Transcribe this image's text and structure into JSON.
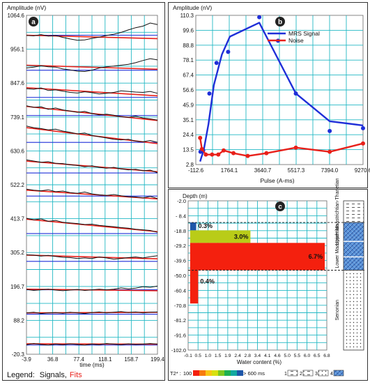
{
  "colors": {
    "grid": "#22b8c4",
    "signal_blue": "#1f2fd8",
    "fit_red": "#e8201a",
    "baseline_blue": "#1f2fd8",
    "trace_black": "#111111",
    "panel_border": "#333333",
    "badge": "#222222"
  },
  "legend_bottom": {
    "label": "Legend:",
    "signals": "Signals",
    "sep": ",",
    "fits": "Fits"
  },
  "chart_data": [
    {
      "id": "a",
      "badge": "a",
      "type": "line",
      "ylabel": "Amplitude (nV)",
      "xlabel": "time (ms)",
      "xticks": [
        "-3.9",
        "36.8",
        "77.4",
        "118.1",
        "158.7",
        "199.4"
      ],
      "xlim": [
        -3.9,
        199.4
      ],
      "yticks": [
        "1064.6",
        "956.1",
        "847.6",
        "739.1",
        "630.6",
        "522.2",
        "413.7",
        "305.2",
        "196.7",
        "88.2",
        "-20.3"
      ],
      "ylim": [
        -20.3,
        1064.6
      ],
      "grid": true,
      "traces": [
        {
          "baseline": 1001,
          "fit": [
            1001,
            990
          ],
          "signal": [
            1000,
            999,
            1003,
            998,
            1000,
            994,
            989,
            985,
            986,
            991,
            995,
            1000,
            1004,
            1010,
            1018,
            1025,
            1030,
            1040,
            1035
          ]
        },
        {
          "baseline": 889,
          "fit": [
            905,
            892
          ],
          "signal": [
            896,
            899,
            903,
            900,
            899,
            893,
            890,
            886,
            885,
            889,
            896,
            900,
            902,
            905,
            908,
            913,
            920,
            926,
            922
          ]
        },
        {
          "baseline": 802,
          "fit": [
            833,
            807
          ],
          "signal": [
            830,
            828,
            832,
            824,
            826,
            822,
            818,
            816,
            820,
            817,
            813,
            815,
            818,
            823,
            821,
            819,
            818,
            821,
            815
          ]
        },
        {
          "baseline": 744,
          "fit": [
            773,
            728
          ],
          "signal": [
            775,
            770,
            772,
            764,
            768,
            762,
            758,
            754,
            757,
            750,
            746,
            748,
            745,
            740,
            738,
            742,
            736,
            733,
            729
          ]
        },
        {
          "baseline": 658,
          "fit": [
            705,
            654
          ],
          "signal": [
            710,
            705,
            702,
            698,
            700,
            694,
            690,
            685,
            688,
            680,
            676,
            672,
            668,
            666,
            668,
            662,
            660,
            664,
            658
          ]
        },
        {
          "baseline": 560,
          "fit": [
            598,
            564
          ],
          "signal": [
            602,
            598,
            594,
            596,
            591,
            590,
            586,
            584,
            580,
            583,
            578,
            575,
            578,
            573,
            570,
            572,
            567,
            569,
            561
          ]
        },
        {
          "baseline": 486,
          "fit": [
            505,
            477
          ],
          "signal": [
            508,
            505,
            503,
            506,
            500,
            502,
            497,
            495,
            499,
            493,
            490,
            488,
            491,
            487,
            484,
            483,
            480,
            485,
            478
          ]
        },
        {
          "baseline": 366,
          "fit": [
            412,
            372
          ],
          "signal": [
            415,
            410,
            413,
            405,
            408,
            402,
            400,
            398,
            395,
            396,
            392,
            390,
            388,
            385,
            383,
            380,
            378,
            376,
            370
          ]
        },
        {
          "baseline": 277,
          "fit": [
            297,
            285
          ],
          "signal": [
            298,
            297,
            294,
            296,
            293,
            290,
            289,
            286,
            288,
            286,
            291,
            288,
            284,
            286,
            289,
            291,
            288,
            292,
            295
          ]
        },
        {
          "baseline": 186,
          "fit": [
            188,
            183
          ],
          "signal": [
            187,
            184,
            186,
            188,
            185,
            183,
            185,
            187,
            184,
            186,
            188,
            186,
            188,
            192,
            189,
            191,
            196,
            194,
            198
          ]
        },
        {
          "baseline": 108,
          "fit": [
            112,
            114
          ],
          "signal": [
            112,
            114,
            110,
            112,
            113,
            111,
            114,
            112,
            110,
            113,
            115,
            112,
            114,
            116,
            113,
            115,
            112,
            114,
            115
          ]
        },
        {
          "baseline": 9,
          "fit": [
            13,
            12
          ],
          "signal": [
            10,
            14,
            11,
            9,
            12,
            10,
            13,
            11,
            9,
            12,
            10,
            14,
            12,
            10,
            13,
            11,
            12,
            14,
            12
          ]
        }
      ]
    },
    {
      "id": "b",
      "badge": "b",
      "type": "line",
      "ylabel": "Amplitude (nV)",
      "xlabel": "Pulse (A-ms)",
      "xticks": [
        "-112.6",
        "1764.1",
        "3640.7",
        "5517.3",
        "7394.0",
        "9270.6"
      ],
      "xlim": [
        -112.6,
        9270.6
      ],
      "yticks": [
        "110.3",
        "99.6",
        "88.8",
        "78.1",
        "67.4",
        "56.6",
        "45.9",
        "35.1",
        "24.4",
        "13.5",
        "2.8"
      ],
      "ylim": [
        2.8,
        110.3
      ],
      "grid": true,
      "legend_position": "top-right",
      "series": [
        {
          "name": "MRS Signal",
          "line": [
            [
              130,
              5
            ],
            [
              200,
              8
            ],
            [
              330,
              13
            ],
            [
              600,
              32
            ],
            [
              900,
              60
            ],
            [
              1350,
              82
            ],
            [
              1800,
              95
            ],
            [
              3450,
              105
            ],
            [
              5500,
              54
            ],
            [
              7400,
              34
            ],
            [
              9270,
              31
            ]
          ],
          "points": [
            [
              150,
              12
            ],
            [
              300,
              13
            ],
            [
              650,
              54
            ],
            [
              1050,
              76
            ],
            [
              1700,
              84
            ],
            [
              3450,
              109
            ],
            [
              4500,
              92
            ],
            [
              5500,
              54
            ],
            [
              7400,
              27
            ],
            [
              9270,
              29
            ]
          ]
        },
        {
          "name": "Noise",
          "line": [
            [
              130,
              22
            ],
            [
              230,
              14
            ],
            [
              450,
              10
            ],
            [
              800,
              10
            ],
            [
              1150,
              10
            ],
            [
              1450,
              13
            ],
            [
              2000,
              11
            ],
            [
              2800,
              9
            ],
            [
              3850,
              11
            ],
            [
              5500,
              15
            ],
            [
              7400,
              12
            ],
            [
              9270,
              18
            ]
          ],
          "points": [
            [
              130,
              22
            ],
            [
              230,
              14
            ],
            [
              450,
              10
            ],
            [
              800,
              10
            ],
            [
              1150,
              10
            ],
            [
              1450,
              13
            ],
            [
              2000,
              11
            ],
            [
              2800,
              9
            ],
            [
              3850,
              11
            ],
            [
              5500,
              15
            ],
            [
              7400,
              12
            ],
            [
              9270,
              18
            ]
          ]
        }
      ]
    },
    {
      "id": "c",
      "badge": "c",
      "type": "bar",
      "orientation": "horizontal",
      "ylabel": "Depth (m)",
      "xlabel": "Water content (%)",
      "xticks": [
        "-0.1",
        "0.5",
        "1.0",
        "1.5",
        "1.9",
        "2.4",
        "2.8",
        "3.4",
        "4.1",
        "4.6",
        "5.0",
        "5.5",
        "6.0",
        "6.5",
        "6.8"
      ],
      "xlim": [
        -0.1,
        6.8
      ],
      "yticks": [
        "-2.0",
        "- 8.4",
        "-18.8",
        "-29.2",
        "-39.6",
        "-50.0",
        "-60.4",
        "-70.8",
        "-81.2",
        "-91.6",
        "-102.0"
      ],
      "ylim": [
        -102.0,
        -2.0
      ],
      "grid": true,
      "dashed_depths": [
        -16.5,
        -48.5
      ],
      "bars": [
        {
          "label": "0.3%",
          "value": 0.3,
          "top": -16.5,
          "bottom": -21.8,
          "color": "#1d56a8"
        },
        {
          "label": "3.0%",
          "value": 3.0,
          "top": -21.8,
          "bottom": -30.2,
          "color": "#b9cc18"
        },
        {
          "label": "6.7%",
          "value": 6.7,
          "top": -30.2,
          "bottom": -48.5,
          "color": "#f4200e"
        },
        {
          "label": "0.4%",
          "value": 0.4,
          "top": -48.5,
          "bottom": -70.8,
          "color": "#f4200e"
        }
      ],
      "t2_legend": {
        "label": "T2* :",
        "min": "100",
        "max": "> 600 ms",
        "colors": [
          "#f4200e",
          "#f77a0e",
          "#f9c614",
          "#d8e010",
          "#7cc820",
          "#1eb050",
          "#12a8a0",
          "#1d56a8"
        ]
      },
      "strata_legend": [
        "1",
        "2",
        "3",
        "4"
      ],
      "strata": [
        {
          "name": "Upper Maastrichtian-Thanetian",
          "top": -2.0,
          "bottom": -16.5,
          "pattern": "dash"
        },
        {
          "name": "Lower Maastrichtian",
          "top": -16.5,
          "bottom": -48.5,
          "pattern": "blue"
        },
        {
          "name": "Senonian",
          "top": -48.5,
          "bottom": -102.0,
          "pattern": "dot"
        }
      ]
    }
  ]
}
